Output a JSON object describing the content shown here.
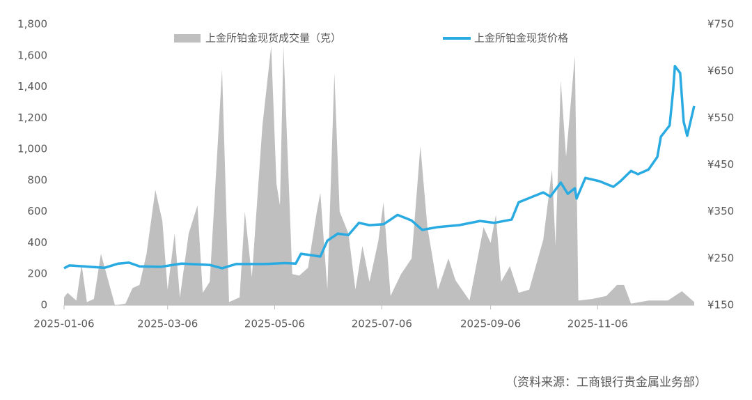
{
  "chart_data": {
    "type": "area-line",
    "xlim": [
      "2025-01-06",
      "2025-12-31"
    ],
    "xticks": [
      "2025-01-06",
      "2025-03-06",
      "2025-05-06",
      "2025-07-06",
      "2025-09-06",
      "2025-11-06"
    ],
    "ylim": [
      0,
      1800
    ],
    "yticks": [
      0,
      200,
      400,
      600,
      800,
      {
        "value": 1000,
        "label": "1,000"
      },
      {
        "value": 1200,
        "label": "1,200"
      },
      {
        "value": 1400,
        "label": "1,400"
      },
      {
        "value": 1600,
        "label": "1,600"
      },
      {
        "value": 1800,
        "label": "1,800"
      }
    ],
    "y2lim": [
      150,
      750
    ],
    "y2ticks": [
      {
        "value": 150,
        "label": "¥150"
      },
      {
        "value": 250,
        "label": "¥250"
      },
      {
        "value": 350,
        "label": "¥350"
      },
      {
        "value": 450,
        "label": "¥450"
      },
      {
        "value": 550,
        "label": "¥550"
      },
      {
        "value": 650,
        "label": "¥650"
      },
      {
        "value": 750,
        "label": "¥750"
      }
    ],
    "grid": false,
    "source": "（资料来源：工商银行贵金属业务部）",
    "series": [
      {
        "name": "上金所铂金现货成交量（克）",
        "color": "#bfbfbf",
        "kind": "area",
        "x": [
          "2025-01-06",
          "2025-01-08",
          "2025-01-13",
          "2025-01-16",
          "2025-01-19",
          "2025-01-23",
          "2025-01-27",
          "2025-02-04",
          "2025-02-10",
          "2025-02-14",
          "2025-02-18",
          "2025-02-22",
          "2025-02-27",
          "2025-03-03",
          "2025-03-06",
          "2025-03-10",
          "2025-03-13",
          "2025-03-18",
          "2025-03-23",
          "2025-03-26",
          "2025-03-30",
          "2025-04-06",
          "2025-04-10",
          "2025-04-16",
          "2025-04-19",
          "2025-04-23",
          "2025-04-29",
          "2025-05-04",
          "2025-05-07",
          "2025-05-09",
          "2025-05-11",
          "2025-05-16",
          "2025-05-20",
          "2025-05-25",
          "2025-05-30",
          "2025-06-01",
          "2025-06-05",
          "2025-06-09",
          "2025-06-12",
          "2025-06-17",
          "2025-06-21",
          "2025-06-25",
          "2025-06-29",
          "2025-07-04",
          "2025-07-07",
          "2025-07-11",
          "2025-07-17",
          "2025-07-23",
          "2025-07-28",
          "2025-08-01",
          "2025-08-07",
          "2025-08-13",
          "2025-08-17",
          "2025-08-25",
          "2025-09-02",
          "2025-09-06",
          "2025-09-09",
          "2025-09-12",
          "2025-09-17",
          "2025-09-22",
          "2025-09-28",
          "2025-10-06",
          "2025-10-11",
          "2025-10-13",
          "2025-10-16",
          "2025-10-19",
          "2025-10-24",
          "2025-10-26",
          "2025-11-03",
          "2025-11-11",
          "2025-11-17",
          "2025-11-21",
          "2025-11-25",
          "2025-12-05",
          "2025-12-16",
          "2025-12-24",
          "2025-12-31"
        ],
        "values": [
          50,
          80,
          30,
          260,
          20,
          40,
          330,
          0,
          10,
          110,
          130,
          330,
          740,
          540,
          100,
          460,
          50,
          460,
          640,
          80,
          150,
          1510,
          20,
          50,
          600,
          180,
          1150,
          1660,
          780,
          640,
          1660,
          200,
          190,
          240,
          600,
          720,
          100,
          1490,
          600,
          460,
          100,
          380,
          150,
          410,
          660,
          60,
          200,
          300,
          1020,
          500,
          100,
          300,
          160,
          30,
          500,
          400,
          580,
          150,
          250,
          80,
          100,
          420,
          870,
          380,
          1440,
          950,
          1600,
          30,
          40,
          60,
          130,
          130,
          10,
          30,
          30,
          90,
          20
        ]
      },
      {
        "name": "上金所铂金现货价格",
        "color": "#29abe2",
        "kind": "line",
        "axis": "y2",
        "x": [
          "2025-01-06",
          "2025-01-09",
          "2025-01-29",
          "2025-02-06",
          "2025-02-12",
          "2025-02-18",
          "2025-03-02",
          "2025-03-14",
          "2025-03-30",
          "2025-04-06",
          "2025-04-14",
          "2025-04-30",
          "2025-05-12",
          "2025-05-18",
          "2025-05-21",
          "2025-06-01",
          "2025-06-05",
          "2025-06-11",
          "2025-06-17",
          "2025-06-23",
          "2025-06-29",
          "2025-07-07",
          "2025-07-15",
          "2025-07-23",
          "2025-07-29",
          "2025-08-07",
          "2025-08-19",
          "2025-08-31",
          "2025-09-08",
          "2025-09-18",
          "2025-09-22",
          "2025-09-28",
          "2025-10-06",
          "2025-10-10",
          "2025-10-16",
          "2025-10-20",
          "2025-10-24",
          "2025-10-25",
          "2025-10-30",
          "2025-11-07",
          "2025-11-15",
          "2025-11-19",
          "2025-11-25",
          "2025-11-29",
          "2025-12-05",
          "2025-12-10",
          "2025-12-12",
          "2025-12-17",
          "2025-12-19",
          "2025-12-20",
          "2025-12-23",
          "2025-12-25",
          "2025-12-27",
          "2025-12-31"
        ],
        "values": [
          229,
          235,
          230,
          239,
          241,
          233,
          232,
          239,
          236,
          229,
          238,
          238,
          240,
          239,
          260,
          254,
          288,
          303,
          300,
          326,
          321,
          323,
          343,
          331,
          311,
          317,
          321,
          330,
          326,
          333,
          370,
          379,
          391,
          382,
          412,
          388,
          400,
          378,
          422,
          415,
          403,
          415,
          437,
          430,
          440,
          467,
          510,
          534,
          609,
          661,
          646,
          542,
          512,
          576
        ]
      }
    ]
  }
}
